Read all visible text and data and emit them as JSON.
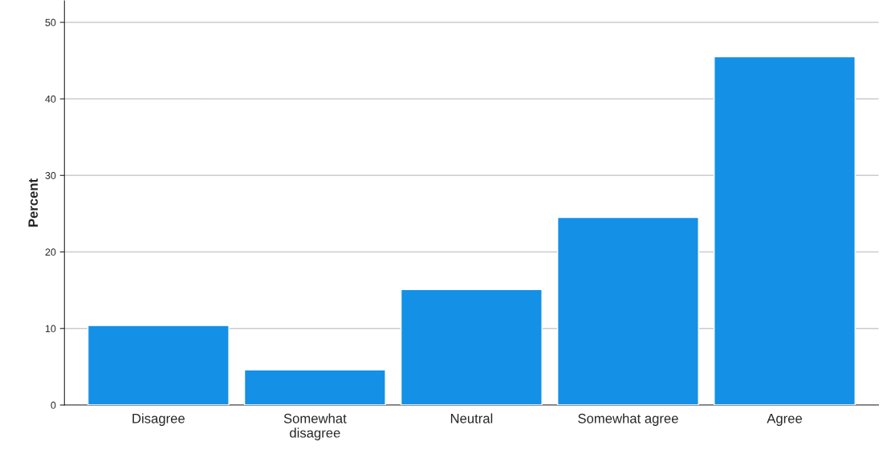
{
  "chart_data": {
    "type": "bar",
    "ylabel": "Percent",
    "categories": [
      "Disagree",
      "Somewhat disagree",
      "Neutral",
      "Somewhat agree",
      "Agree"
    ],
    "values": [
      10.4,
      4.6,
      15.1,
      24.5,
      45.5
    ],
    "color": "#1490e6",
    "ylim": [
      0,
      52.8
    ],
    "yticks": [
      0,
      10,
      20,
      30,
      40,
      50
    ],
    "grid": "y"
  }
}
